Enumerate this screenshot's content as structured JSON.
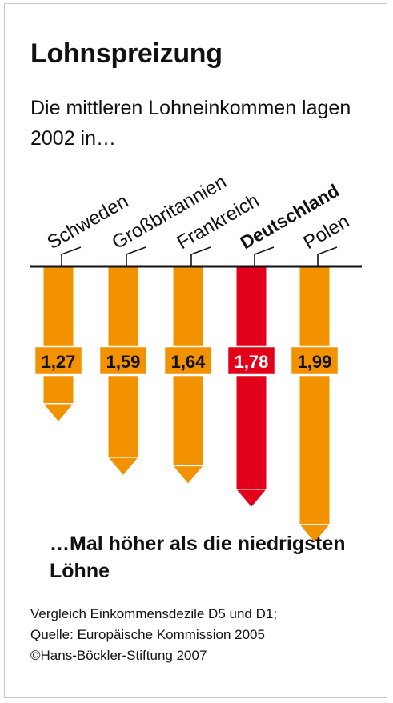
{
  "title": "Lohnspreizung",
  "subtitle": "Die mittleren Lohneinkommen lagen 2002 in…",
  "bottom_note": "…Mal höher als die niedrigsten Löhne",
  "footnote": {
    "line1": "Vergleich Einkommensdezile D5 und D1;",
    "line2": "Quelle: Europäische Kommission 2005",
    "line3": "©Hans-Böckler-Stiftung 2007"
  },
  "colors": {
    "bar": "#f39200",
    "highlight": "#e2001a",
    "axis": "#111111",
    "label_text_dark": "#111111",
    "label_text_light": "#ffffff"
  },
  "chart_data": {
    "type": "bar",
    "orientation": "vertical-down",
    "categories": [
      "Schweden",
      "Großbritannien",
      "Frankreich",
      "Deutschland",
      "Polen"
    ],
    "values": [
      1.27,
      1.59,
      1.64,
      1.78,
      1.99
    ],
    "value_labels": [
      "1,27",
      "1,59",
      "1,64",
      "1,78",
      "1,99"
    ],
    "highlight": "Deutschland",
    "ylim": [
      1,
      2
    ],
    "grid": false,
    "legend": "none"
  }
}
